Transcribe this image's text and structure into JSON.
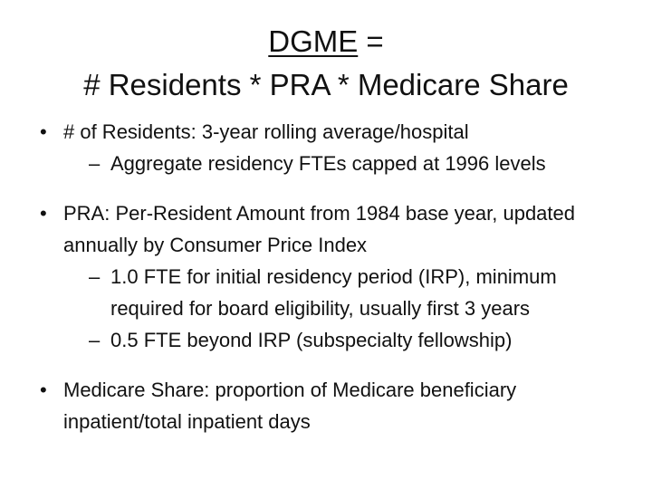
{
  "title": {
    "term": "DGME",
    "equals": " =",
    "formula": "# Residents * PRA * Medicare Share"
  },
  "bullets": [
    {
      "text": "# of Residents: 3-year rolling average/hospital",
      "subs": [
        "Aggregate residency FTEs capped at 1996 levels"
      ]
    },
    {
      "text": "PRA: Per-Resident Amount from 1984 base year, updated annually by Consumer Price Index",
      "subs": [
        "1.0 FTE for initial residency period (IRP), minimum required for board eligibility, usually first 3 years",
        "0.5 FTE beyond IRP (subspecialty fellowship)"
      ]
    },
    {
      "text": "Medicare Share: proportion of Medicare beneficiary inpatient/total inpatient days",
      "subs": []
    }
  ],
  "markers": {
    "bullet": "•",
    "dash": "–"
  }
}
